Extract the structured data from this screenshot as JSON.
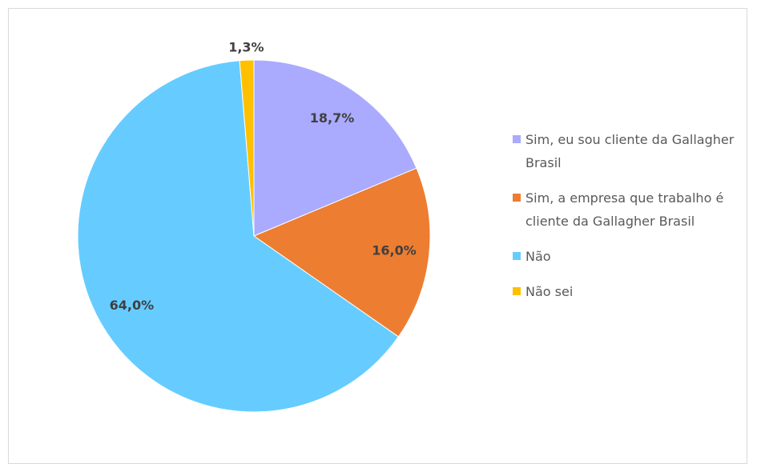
{
  "chart_data": {
    "type": "pie",
    "categories": [
      "Sim, eu sou cliente da Gallagher Brasil",
      "Sim, a empresa que trabalho é cliente da Gallagher Brasil",
      "Não",
      "Não sei"
    ],
    "values": [
      18.7,
      16.0,
      64.0,
      1.3
    ],
    "value_labels": [
      "18,7%",
      "16,0%",
      "64,0%",
      "1,3%"
    ],
    "colors": [
      "#aaaaff",
      "#ed7d31",
      "#66ccff",
      "#ffc000"
    ],
    "legend": "right"
  }
}
